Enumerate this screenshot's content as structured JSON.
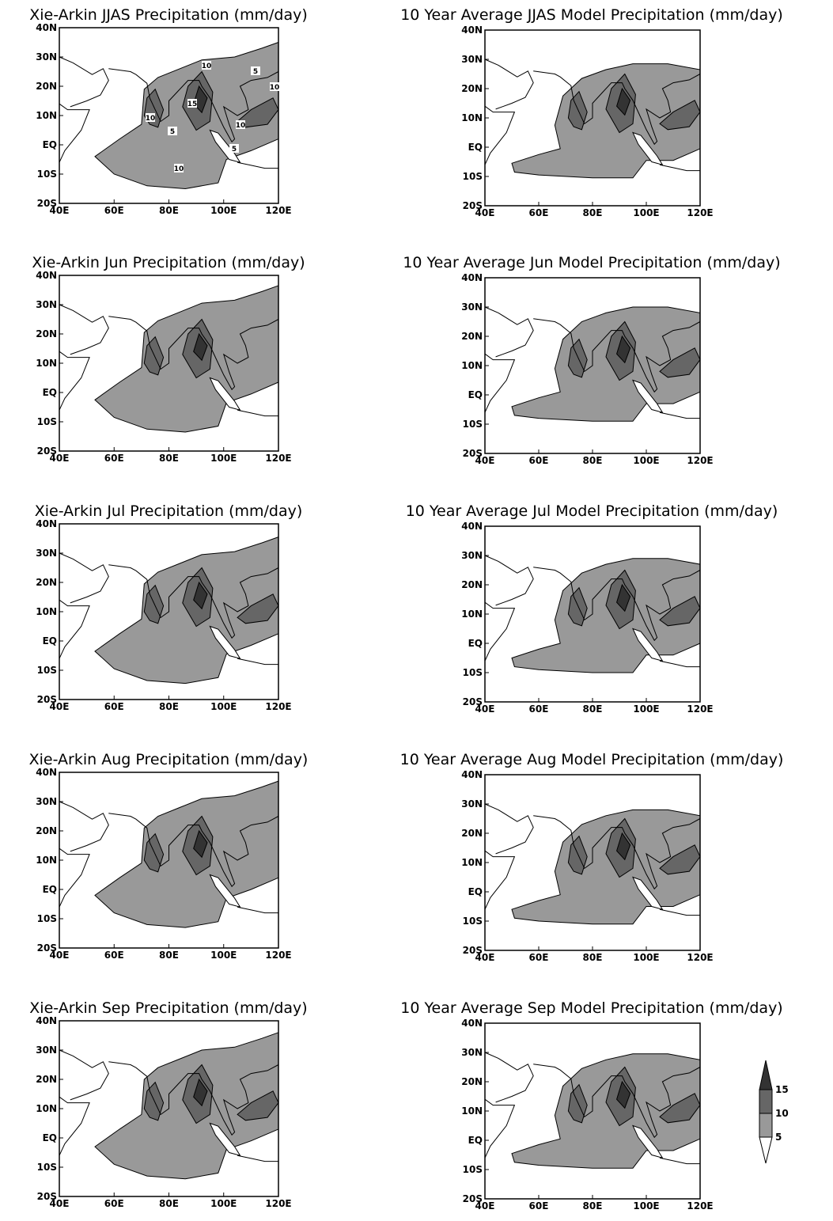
{
  "panels": [
    {
      "title": "Xie-Arkin JJAS Precipitation (mm/day)"
    },
    {
      "title": "10 Year Average JJAS Model Precipitation (mm/day)"
    },
    {
      "title": "Xie-Arkin Jun Precipitation (mm/day)"
    },
    {
      "title": "10 Year Average Jun Model Precipitation (mm/day)"
    },
    {
      "title": "Xie-Arkin Jul Precipitation (mm/day)"
    },
    {
      "title": "10 Year Average Jul Model Precipitation (mm/day)"
    },
    {
      "title": "Xie-Arkin Aug Precipitation (mm/day)"
    },
    {
      "title": "10 Year Average Aug Model Precipitation (mm/day)"
    },
    {
      "title": "Xie-Arkin Sep Precipitation (mm/day)"
    },
    {
      "title": "10 Year Average Sep Model Precipitation (mm/day)"
    }
  ],
  "axis_labels": {
    "x": [
      "40E",
      "60E",
      "80E",
      "100E",
      "120E"
    ],
    "y": [
      "40N",
      "30N",
      "20N",
      "10N",
      "EQ",
      "10S",
      "20S"
    ]
  },
  "contour_labels": [
    "10",
    "5",
    "10",
    "15",
    "10",
    "5",
    "10",
    "5",
    "10"
  ],
  "legend": {
    "labels": [
      "15",
      "10",
      "5"
    ]
  }
}
